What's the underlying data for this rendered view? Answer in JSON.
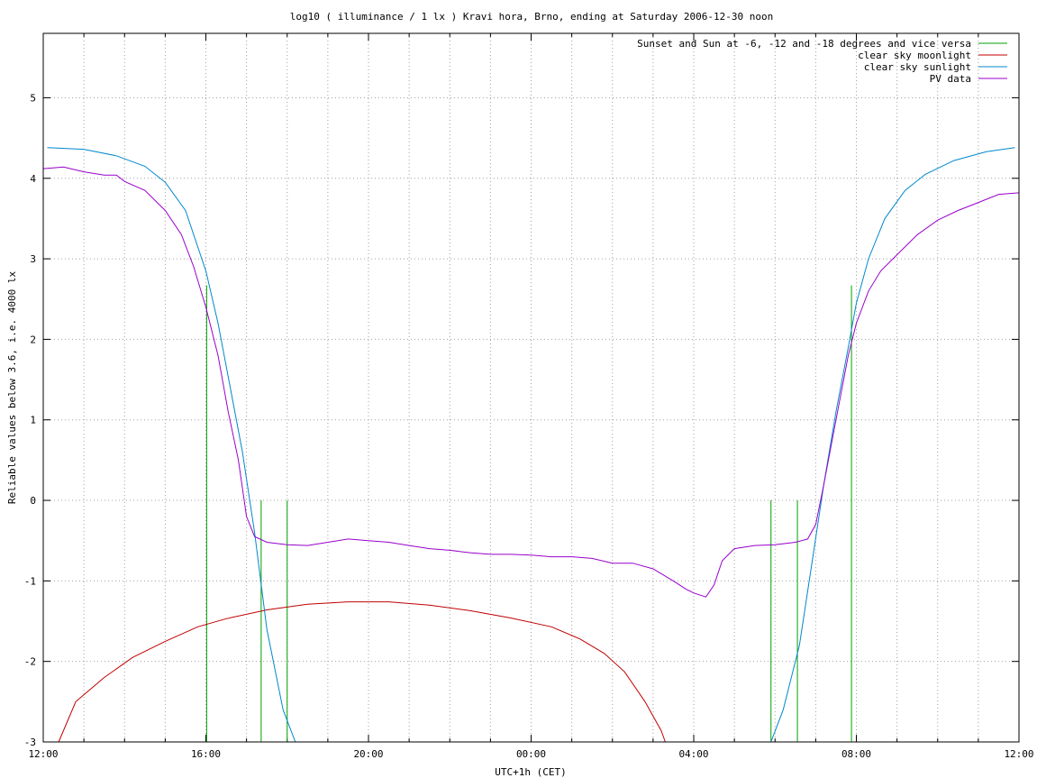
{
  "chart_data": {
    "type": "line",
    "title": "log10 ( illuminance / 1 lx ) Kravi hora, Brno, ending at Saturday 2006-12-30 noon",
    "xlabel": "UTC+1h (CET)",
    "ylabel": "Reliable values below 3.6, i.e. 4000 lx",
    "x_unit": "hours since 12:00 CET",
    "xlim": [
      0,
      24
    ],
    "ylim": [
      -3,
      5.8
    ],
    "x_ticks": [
      {
        "x": 0,
        "label": "12:00"
      },
      {
        "x": 4,
        "label": "16:00"
      },
      {
        "x": 8,
        "label": "20:00"
      },
      {
        "x": 12,
        "label": "00:00"
      },
      {
        "x": 16,
        "label": "04:00"
      },
      {
        "x": 20,
        "label": "08:00"
      },
      {
        "x": 24,
        "label": "12:00"
      }
    ],
    "y_ticks": [
      {
        "y": -3,
        "label": "-3"
      },
      {
        "y": -2,
        "label": "-2"
      },
      {
        "y": -1,
        "label": "-1"
      },
      {
        "y": 0,
        "label": "0"
      },
      {
        "y": 1,
        "label": "1"
      },
      {
        "y": 2,
        "label": "2"
      },
      {
        "y": 3,
        "label": "3"
      },
      {
        "y": 4,
        "label": "4"
      },
      {
        "y": 5,
        "label": "5"
      }
    ],
    "grid": true,
    "legend_position": "top-right",
    "series": [
      {
        "name": "Sunset and Sun at -6, -12 and -18 degrees and vice versa",
        "color": "#00a000",
        "style": "impulses",
        "points": [
          [
            4.02,
            2.67
          ],
          [
            5.36,
            0
          ],
          [
            6.0,
            0
          ],
          [
            17.9,
            0
          ],
          [
            18.55,
            0
          ],
          [
            19.88,
            2.67
          ]
        ]
      },
      {
        "name": "clear sky moonlight",
        "color": "#c00000",
        "points": [
          [
            0.38,
            -3.0
          ],
          [
            0.8,
            -2.5
          ],
          [
            1.5,
            -2.2
          ],
          [
            2.2,
            -1.95
          ],
          [
            3.0,
            -1.75
          ],
          [
            3.8,
            -1.57
          ],
          [
            4.5,
            -1.47
          ],
          [
            5.5,
            -1.36
          ],
          [
            6.5,
            -1.29
          ],
          [
            7.5,
            -1.26
          ],
          [
            8.5,
            -1.26
          ],
          [
            9.5,
            -1.3
          ],
          [
            10.5,
            -1.37
          ],
          [
            11.5,
            -1.46
          ],
          [
            12.5,
            -1.57
          ],
          [
            13.2,
            -1.72
          ],
          [
            13.8,
            -1.9
          ],
          [
            14.3,
            -2.13
          ],
          [
            14.8,
            -2.5
          ],
          [
            15.2,
            -2.86
          ],
          [
            15.3,
            -3.0
          ]
        ]
      },
      {
        "name": "clear sky sunlight",
        "color": "#0088cc",
        "points": [
          [
            0.1,
            4.38
          ],
          [
            1.0,
            4.36
          ],
          [
            1.8,
            4.28
          ],
          [
            2.5,
            4.15
          ],
          [
            3.0,
            3.95
          ],
          [
            3.5,
            3.6
          ],
          [
            4.0,
            2.85
          ],
          [
            4.3,
            2.2
          ],
          [
            4.6,
            1.4
          ],
          [
            4.9,
            0.6
          ],
          [
            5.2,
            -0.4
          ],
          [
            5.5,
            -1.6
          ],
          [
            5.9,
            -2.6
          ],
          [
            6.2,
            -3.0
          ],
          [
            17.9,
            -3.0
          ],
          [
            18.2,
            -2.6
          ],
          [
            18.6,
            -1.8
          ],
          [
            18.9,
            -0.8
          ],
          [
            19.2,
            0.2
          ],
          [
            19.5,
            1.1
          ],
          [
            19.8,
            1.9
          ],
          [
            20.0,
            2.45
          ],
          [
            20.3,
            3.0
          ],
          [
            20.7,
            3.5
          ],
          [
            21.2,
            3.85
          ],
          [
            21.7,
            4.05
          ],
          [
            22.4,
            4.22
          ],
          [
            23.2,
            4.33
          ],
          [
            23.9,
            4.38
          ]
        ]
      },
      {
        "name": "PV data",
        "color": "#9900cc",
        "points": [
          [
            0.0,
            4.12
          ],
          [
            0.5,
            4.14
          ],
          [
            1.0,
            4.08
          ],
          [
            1.5,
            4.04
          ],
          [
            1.8,
            4.04
          ],
          [
            2.0,
            3.96
          ],
          [
            2.5,
            3.85
          ],
          [
            3.0,
            3.6
          ],
          [
            3.4,
            3.3
          ],
          [
            3.7,
            2.9
          ],
          [
            4.0,
            2.4
          ],
          [
            4.3,
            1.8
          ],
          [
            4.55,
            1.1
          ],
          [
            4.8,
            0.5
          ],
          [
            5.0,
            -0.2
          ],
          [
            5.2,
            -0.45
          ],
          [
            5.5,
            -0.52
          ],
          [
            6.0,
            -0.55
          ],
          [
            6.5,
            -0.56
          ],
          [
            7.0,
            -0.52
          ],
          [
            7.5,
            -0.48
          ],
          [
            8.0,
            -0.5
          ],
          [
            8.5,
            -0.52
          ],
          [
            9.0,
            -0.56
          ],
          [
            9.5,
            -0.6
          ],
          [
            10.0,
            -0.62
          ],
          [
            10.5,
            -0.65
          ],
          [
            11.0,
            -0.67
          ],
          [
            11.5,
            -0.67
          ],
          [
            12.0,
            -0.68
          ],
          [
            12.5,
            -0.7
          ],
          [
            13.0,
            -0.7
          ],
          [
            13.5,
            -0.72
          ],
          [
            14.0,
            -0.78
          ],
          [
            14.5,
            -0.78
          ],
          [
            15.0,
            -0.85
          ],
          [
            15.5,
            -1.0
          ],
          [
            15.8,
            -1.1
          ],
          [
            16.0,
            -1.15
          ],
          [
            16.3,
            -1.2
          ],
          [
            16.5,
            -1.05
          ],
          [
            16.7,
            -0.75
          ],
          [
            17.0,
            -0.6
          ],
          [
            17.5,
            -0.56
          ],
          [
            18.0,
            -0.55
          ],
          [
            18.5,
            -0.52
          ],
          [
            18.8,
            -0.48
          ],
          [
            19.0,
            -0.3
          ],
          [
            19.2,
            0.2
          ],
          [
            19.5,
            1.0
          ],
          [
            19.8,
            1.8
          ],
          [
            20.0,
            2.2
          ],
          [
            20.3,
            2.6
          ],
          [
            20.6,
            2.85
          ],
          [
            21.0,
            3.05
          ],
          [
            21.5,
            3.3
          ],
          [
            22.0,
            3.48
          ],
          [
            22.5,
            3.6
          ],
          [
            23.0,
            3.7
          ],
          [
            23.5,
            3.8
          ],
          [
            24.0,
            3.82
          ]
        ]
      }
    ]
  }
}
